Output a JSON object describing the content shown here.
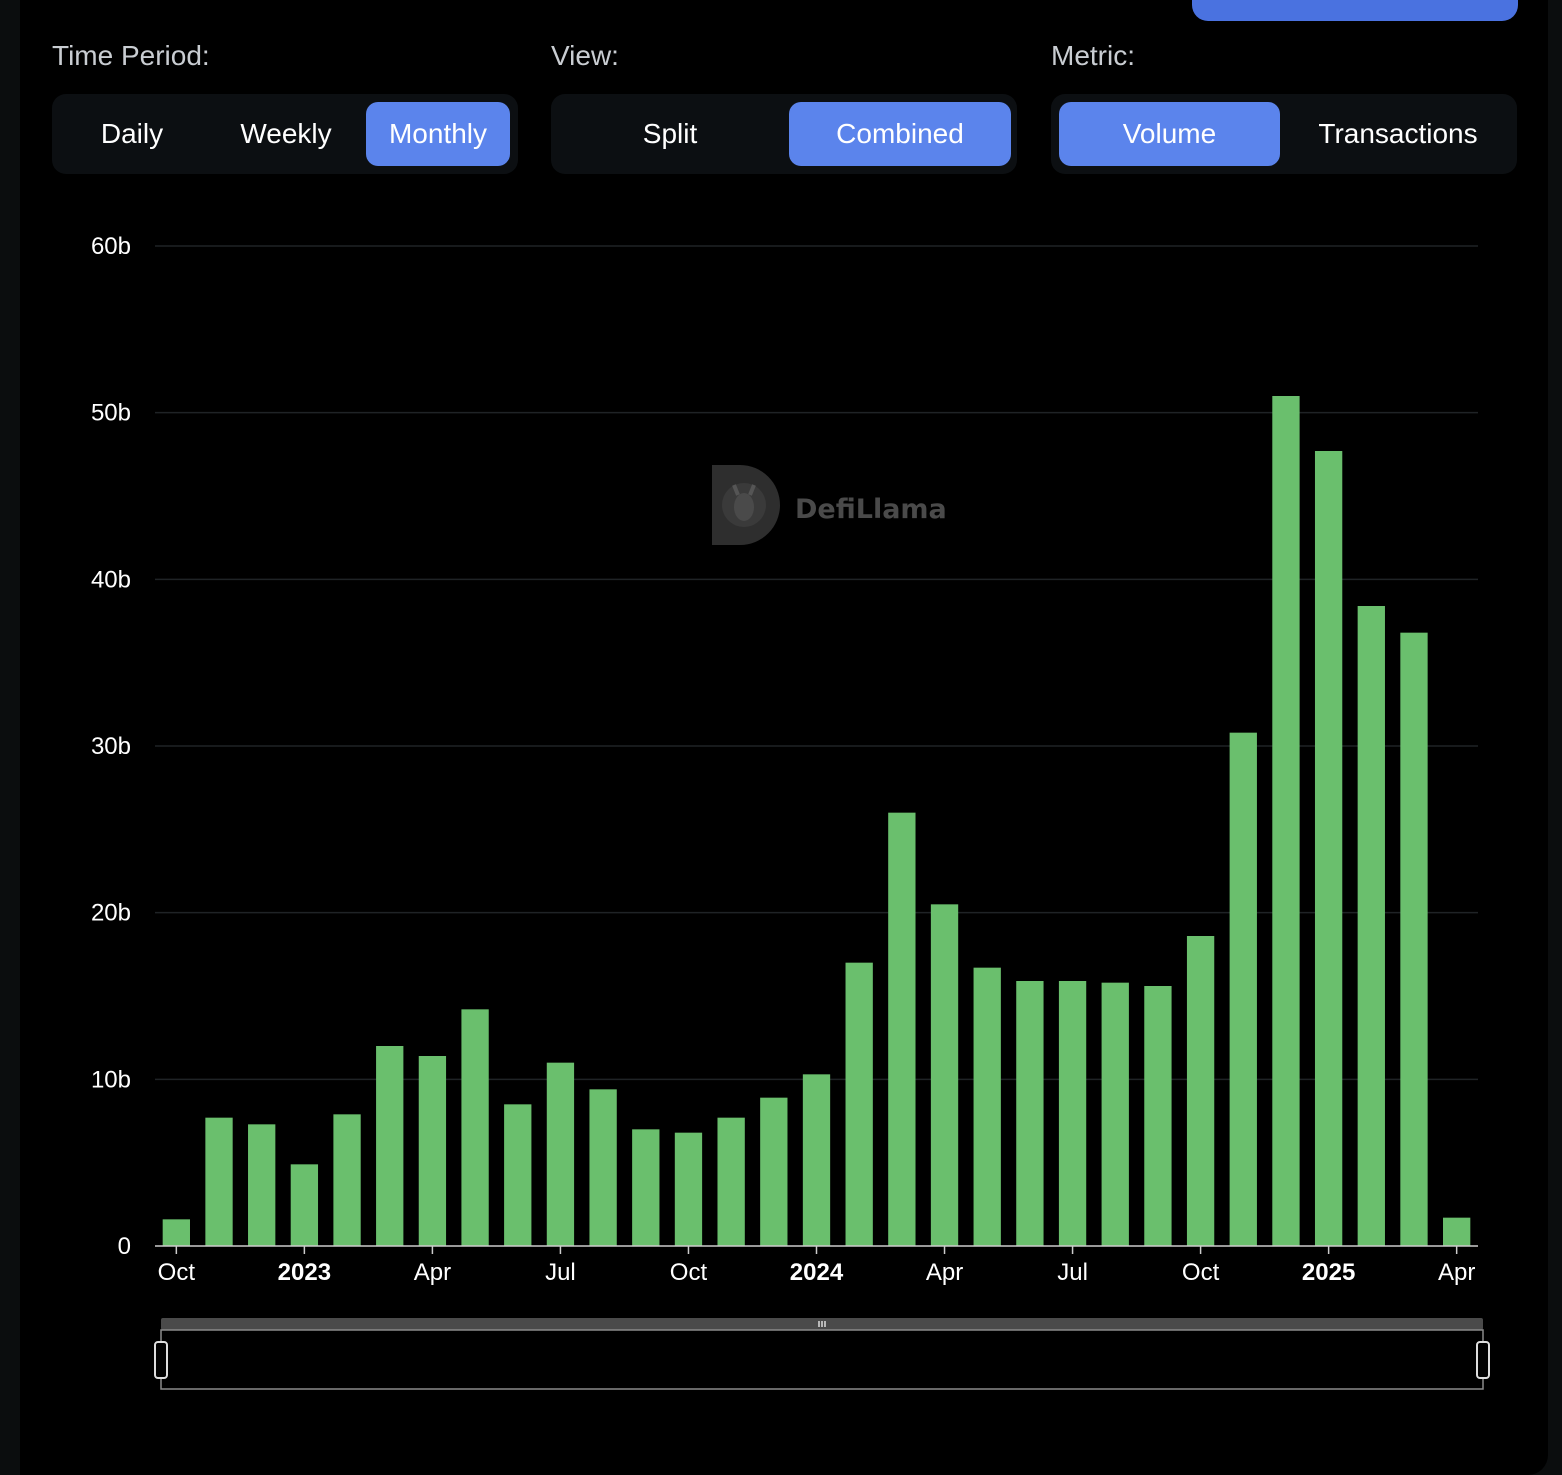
{
  "controls": {
    "time_period": {
      "label": "Time Period:",
      "options": [
        "Daily",
        "Weekly",
        "Monthly"
      ],
      "selected": "Monthly"
    },
    "view": {
      "label": "View:",
      "options": [
        "Split",
        "Combined"
      ],
      "selected": "Combined"
    },
    "metric": {
      "label": "Metric:",
      "options": [
        "Volume",
        "Transactions"
      ],
      "selected": "Volume"
    }
  },
  "watermark": "DefiLlama",
  "colors": {
    "bar": "#6abf6d",
    "accent": "#5b84ec",
    "background": "#000000",
    "grid": "#1f2326"
  },
  "chart_data": {
    "type": "bar",
    "x": [
      "2022-10",
      "2022-11",
      "2022-12",
      "2023-01",
      "2023-02",
      "2023-03",
      "2023-04",
      "2023-05",
      "2023-06",
      "2023-07",
      "2023-08",
      "2023-09",
      "2023-10",
      "2023-11",
      "2023-12",
      "2024-01",
      "2024-02",
      "2024-03",
      "2024-04",
      "2024-05",
      "2024-06",
      "2024-07",
      "2024-08",
      "2024-09",
      "2024-10",
      "2024-11",
      "2024-12",
      "2025-01",
      "2025-02",
      "2025-03",
      "2025-04"
    ],
    "values": [
      1.6,
      7.7,
      7.3,
      4.9,
      7.9,
      12.0,
      11.4,
      14.2,
      8.5,
      11.0,
      9.4,
      7.0,
      6.8,
      7.7,
      8.9,
      10.3,
      17.0,
      26.0,
      20.5,
      16.7,
      15.9,
      15.9,
      15.8,
      15.6,
      18.6,
      30.8,
      51.0,
      47.7,
      38.4,
      36.8,
      1.7
    ],
    "y_unit": "b",
    "ylim": [
      0,
      60
    ],
    "y_ticks": [
      "0",
      "10b",
      "20b",
      "30b",
      "40b",
      "50b",
      "60b"
    ],
    "x_tick_labels": [
      {
        "label": "Oct",
        "bold": false
      },
      {
        "label": "2023",
        "bold": true
      },
      {
        "label": "Apr",
        "bold": false
      },
      {
        "label": "Jul",
        "bold": false
      },
      {
        "label": "Oct",
        "bold": false
      },
      {
        "label": "2024",
        "bold": true
      },
      {
        "label": "Apr",
        "bold": false
      },
      {
        "label": "Jul",
        "bold": false
      },
      {
        "label": "Oct",
        "bold": false
      },
      {
        "label": "2025",
        "bold": true
      },
      {
        "label": "Apr",
        "bold": false
      }
    ],
    "grid": true,
    "legend": "none",
    "zoom_range": [
      0,
      100
    ]
  }
}
